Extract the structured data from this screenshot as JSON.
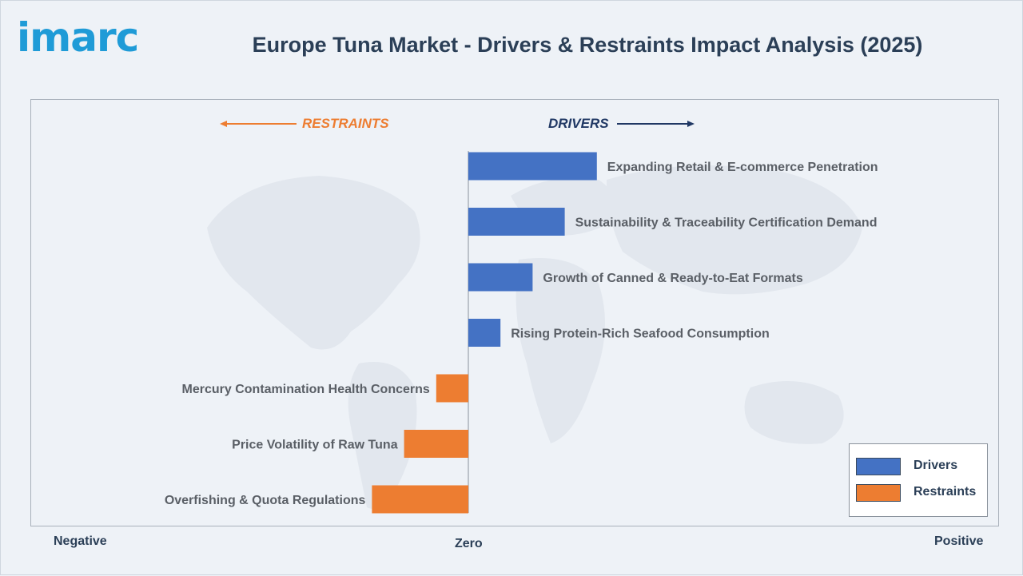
{
  "brand": {
    "logo_text": "imarc"
  },
  "title": "Europe Tuna Market - Drivers & Restraints Impact Analysis (2025)",
  "direction_labels": {
    "restraints": "RESTRAINTS",
    "drivers": "DRIVERS"
  },
  "axis_labels": {
    "negative": "Negative",
    "zero": "Zero",
    "positive": "Positive"
  },
  "legend": [
    {
      "label": "Drivers",
      "color": "#4472c4"
    },
    {
      "label": "Restraints",
      "color": "#ed7d31"
    }
  ],
  "colors": {
    "driver": "#4472c4",
    "restraint": "#ed7d31",
    "title": "#2b3f57",
    "logo": "#1f9bd7"
  },
  "chart_data": {
    "type": "bar",
    "orientation": "horizontal",
    "categories": [
      "Expanding Retail & E-commerce Penetration",
      "Sustainability & Traceability Certification Demand",
      "Growth of Canned & Ready-to-Eat Formats",
      "Rising Protein-Rich Seafood Consumption",
      "Mercury Contamination Health Concerns",
      "Price Volatility of Raw Tuna",
      "Overfishing & Quota Regulations"
    ],
    "series": [
      {
        "name": "Drivers",
        "values": [
          4,
          3,
          2,
          1,
          null,
          null,
          null
        ]
      },
      {
        "name": "Restraints",
        "values": [
          null,
          null,
          null,
          null,
          -1,
          -2,
          -3
        ]
      }
    ],
    "xlim": [
      -13.5,
      16.5
    ],
    "grid": false,
    "legend_position": "bottom-right"
  }
}
